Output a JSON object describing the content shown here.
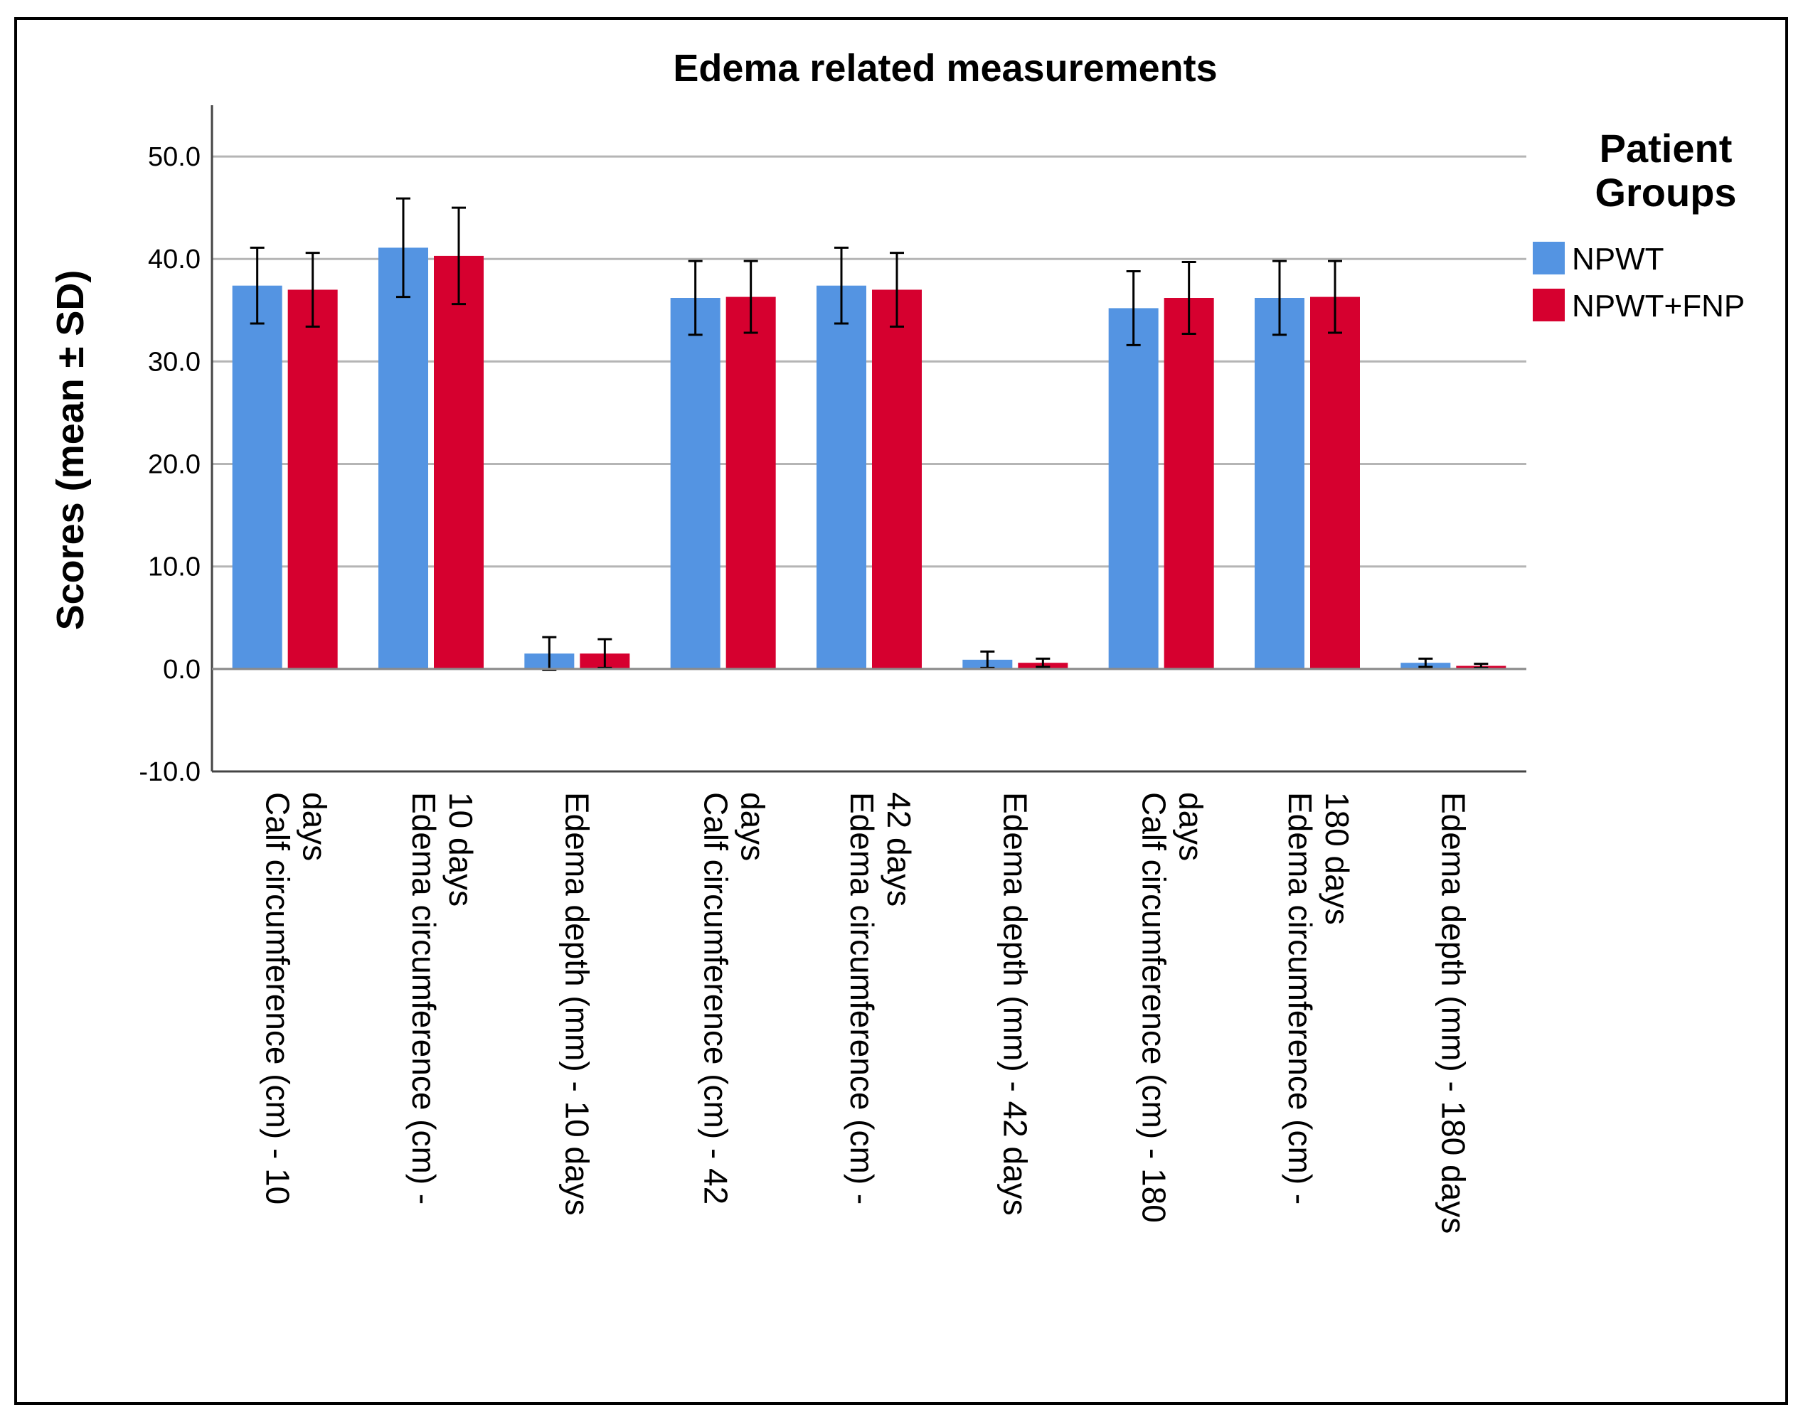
{
  "chart_data": {
    "type": "bar",
    "title": "Edema related measurements",
    "ylabel": "Scores (mean ± SD)",
    "xlabel": "",
    "ylim": [
      -10,
      55
    ],
    "yticks": [
      "50.0",
      "40.0",
      "30.0",
      "20.0",
      "10.0",
      "0.0",
      "-10.0"
    ],
    "grid": true,
    "legend_position": "right",
    "legend_title": [
      "Patient",
      "Groups"
    ],
    "categories": [
      [
        "Calf circumference (cm) - 10",
        "days"
      ],
      [
        "Edema circumference (cm) -",
        "10 days"
      ],
      [
        "Edema depth (mm) - 10 days"
      ],
      [
        "Calf circumference (cm) - 42",
        "days"
      ],
      [
        "Edema circumference (cm) -",
        "42 days"
      ],
      [
        "Edema depth (mm) - 42 days"
      ],
      [
        "Calf circumference (cm) - 180",
        "days"
      ],
      [
        "Edema circumference (cm) -",
        "180 days"
      ],
      [
        "Edema depth (mm) - 180 days"
      ]
    ],
    "series": [
      {
        "name": "NPWT",
        "color": "#5494E2",
        "values": [
          37.4,
          41.1,
          1.5,
          36.2,
          37.4,
          0.9,
          35.2,
          36.2,
          0.6
        ],
        "sd": [
          3.7,
          4.8,
          1.6,
          3.6,
          3.7,
          0.8,
          3.6,
          3.6,
          0.4
        ]
      },
      {
        "name": "NPWT+FNP",
        "color": "#D6002F",
        "values": [
          37.0,
          40.3,
          1.5,
          36.3,
          37.0,
          0.6,
          36.2,
          36.3,
          0.3
        ],
        "sd": [
          3.6,
          4.7,
          1.4,
          3.5,
          3.6,
          0.4,
          3.5,
          3.5,
          0.2
        ]
      }
    ]
  }
}
